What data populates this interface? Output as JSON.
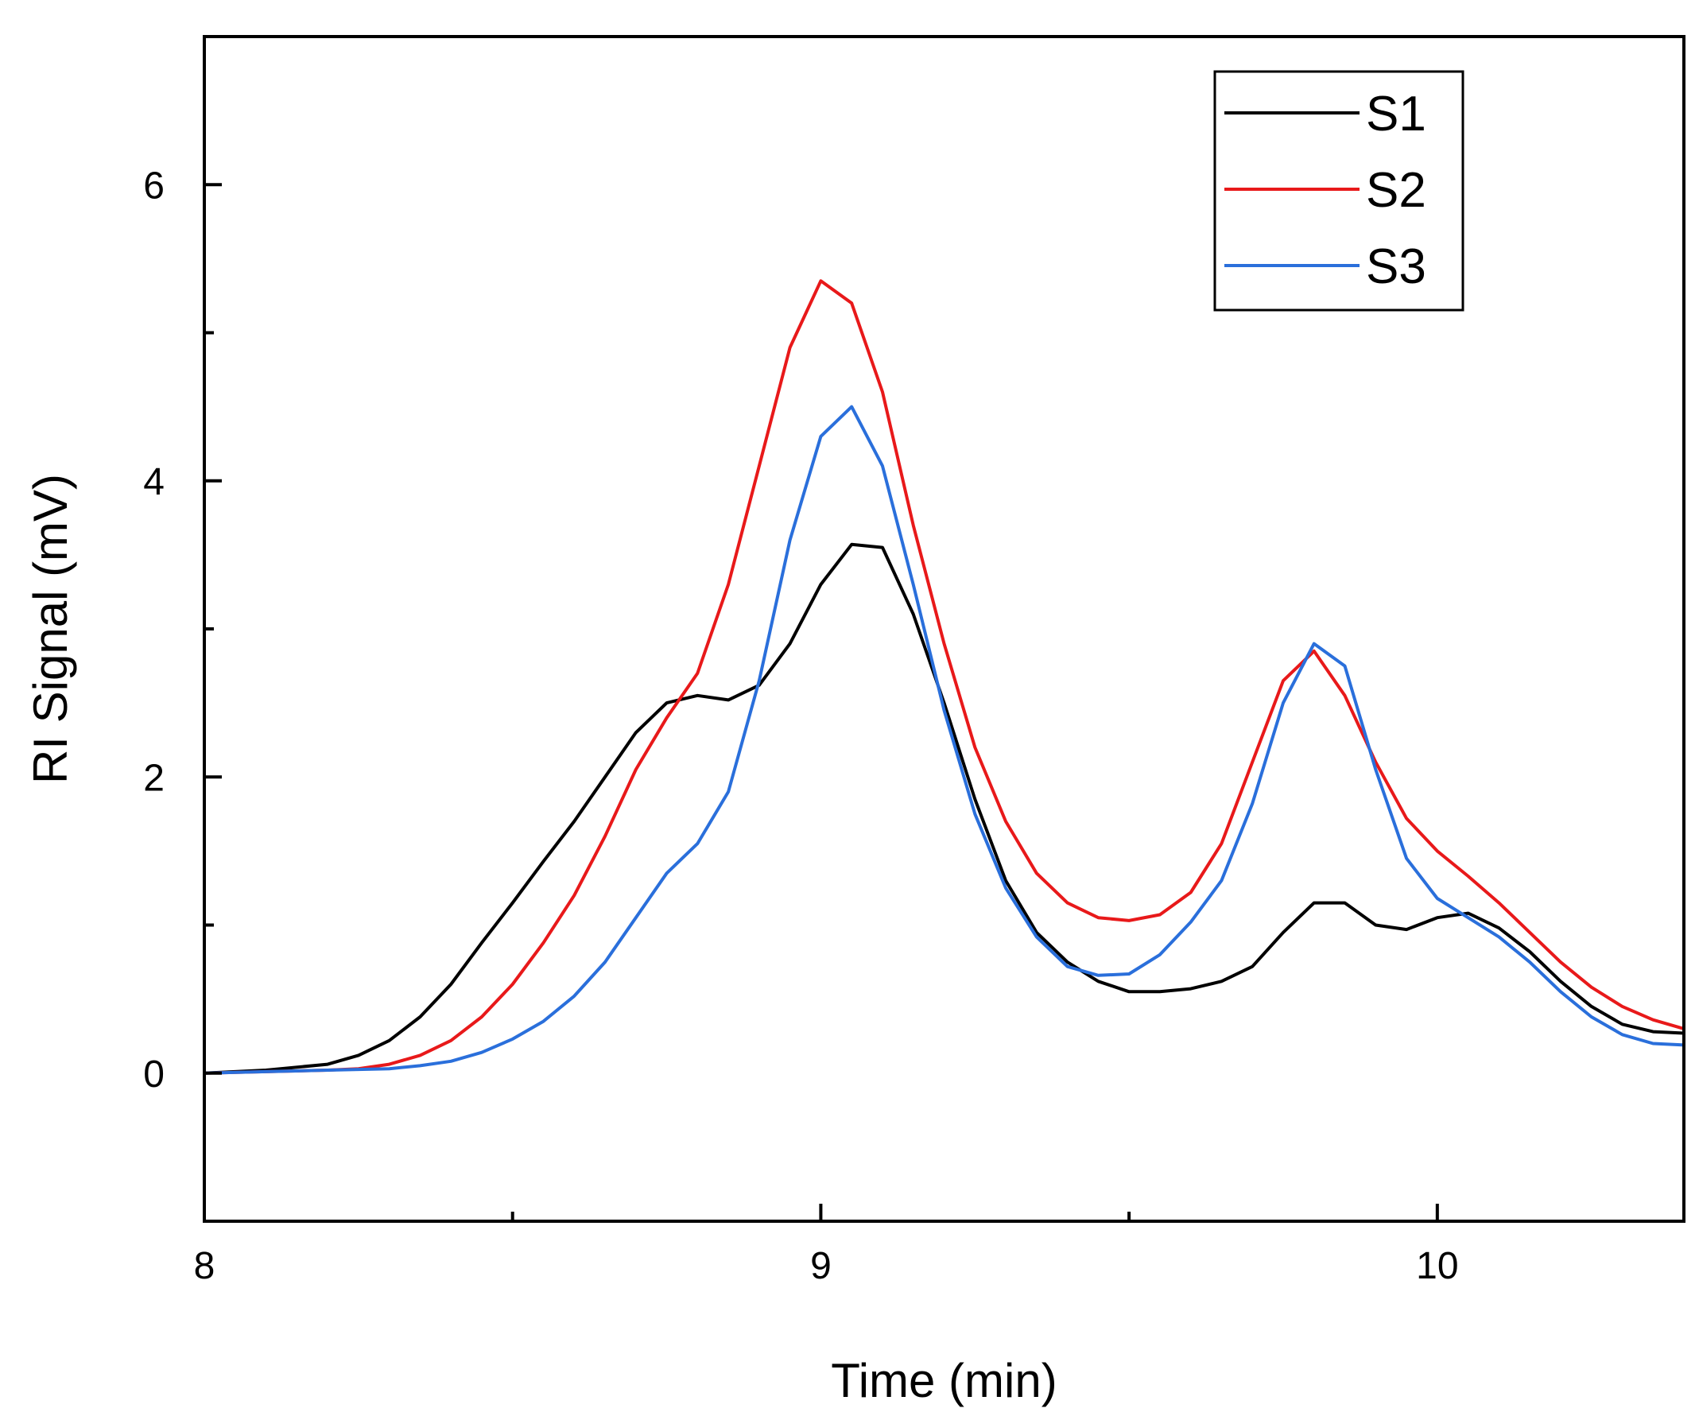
{
  "chart_data": {
    "type": "line",
    "title": "",
    "xlabel": "Time (min)",
    "ylabel": "RI Signal (mV)",
    "xlim": [
      8,
      10.4
    ],
    "ylim": [
      -1,
      7
    ],
    "xticks": [
      8,
      9,
      10
    ],
    "xticks_minor": [
      8.5,
      9.5
    ],
    "yticks": [
      0,
      2,
      4,
      6
    ],
    "yticks_minor": [
      1,
      3,
      5
    ],
    "grid": false,
    "legend_position": "top-right",
    "series": [
      {
        "name": "S1",
        "color": "#000000",
        "x": [
          8.0,
          8.1,
          8.2,
          8.25,
          8.3,
          8.35,
          8.4,
          8.45,
          8.5,
          8.55,
          8.6,
          8.65,
          8.7,
          8.75,
          8.8,
          8.85,
          8.9,
          8.95,
          9.0,
          9.05,
          9.1,
          9.15,
          9.2,
          9.25,
          9.3,
          9.35,
          9.4,
          9.45,
          9.5,
          9.55,
          9.6,
          9.65,
          9.7,
          9.75,
          9.8,
          9.85,
          9.9,
          9.95,
          10.0,
          10.05,
          10.1,
          10.15,
          10.2,
          10.25,
          10.3,
          10.35,
          10.4
        ],
        "y": [
          0.0,
          0.02,
          0.06,
          0.12,
          0.22,
          0.38,
          0.6,
          0.88,
          1.15,
          1.43,
          1.7,
          2.0,
          2.3,
          2.5,
          2.55,
          2.52,
          2.62,
          2.9,
          3.3,
          3.57,
          3.55,
          3.1,
          2.5,
          1.85,
          1.3,
          0.95,
          0.75,
          0.62,
          0.55,
          0.55,
          0.57,
          0.62,
          0.72,
          0.95,
          1.15,
          1.15,
          1.0,
          0.97,
          1.05,
          1.08,
          0.98,
          0.82,
          0.62,
          0.45,
          0.33,
          0.28,
          0.27
        ]
      },
      {
        "name": "S2",
        "color": "#e8191a",
        "x": [
          8.0,
          8.1,
          8.2,
          8.25,
          8.3,
          8.35,
          8.4,
          8.45,
          8.5,
          8.55,
          8.6,
          8.65,
          8.7,
          8.75,
          8.8,
          8.85,
          8.9,
          8.95,
          9.0,
          9.05,
          9.1,
          9.15,
          9.2,
          9.25,
          9.3,
          9.35,
          9.4,
          9.45,
          9.5,
          9.55,
          9.6,
          9.65,
          9.7,
          9.75,
          9.8,
          9.85,
          9.9,
          9.95,
          10.0,
          10.05,
          10.1,
          10.15,
          10.2,
          10.25,
          10.3,
          10.35,
          10.4
        ],
        "y": [
          0.0,
          0.01,
          0.02,
          0.03,
          0.06,
          0.12,
          0.22,
          0.38,
          0.6,
          0.88,
          1.2,
          1.6,
          2.05,
          2.4,
          2.7,
          3.3,
          4.1,
          4.9,
          5.35,
          5.2,
          4.6,
          3.7,
          2.9,
          2.2,
          1.7,
          1.35,
          1.15,
          1.05,
          1.03,
          1.07,
          1.22,
          1.55,
          2.1,
          2.65,
          2.85,
          2.55,
          2.1,
          1.72,
          1.5,
          1.33,
          1.15,
          0.95,
          0.75,
          0.58,
          0.45,
          0.36,
          0.3
        ]
      },
      {
        "name": "S3",
        "color": "#2a6fdb",
        "x": [
          8.0,
          8.1,
          8.2,
          8.3,
          8.35,
          8.4,
          8.45,
          8.5,
          8.55,
          8.6,
          8.65,
          8.7,
          8.75,
          8.8,
          8.85,
          8.9,
          8.95,
          9.0,
          9.05,
          9.1,
          9.15,
          9.2,
          9.25,
          9.3,
          9.35,
          9.4,
          9.45,
          9.5,
          9.55,
          9.6,
          9.65,
          9.7,
          9.75,
          9.8,
          9.85,
          9.9,
          9.95,
          10.0,
          10.05,
          10.1,
          10.15,
          10.2,
          10.25,
          10.3,
          10.35,
          10.4
        ],
        "y": [
          0.0,
          0.01,
          0.02,
          0.03,
          0.05,
          0.08,
          0.14,
          0.23,
          0.35,
          0.52,
          0.75,
          1.05,
          1.35,
          1.55,
          1.9,
          2.65,
          3.6,
          4.3,
          4.5,
          4.1,
          3.3,
          2.45,
          1.75,
          1.25,
          0.92,
          0.72,
          0.66,
          0.67,
          0.8,
          1.02,
          1.3,
          1.82,
          2.5,
          2.9,
          2.75,
          2.05,
          1.45,
          1.18,
          1.05,
          0.92,
          0.75,
          0.55,
          0.38,
          0.26,
          0.2,
          0.19
        ]
      }
    ]
  }
}
